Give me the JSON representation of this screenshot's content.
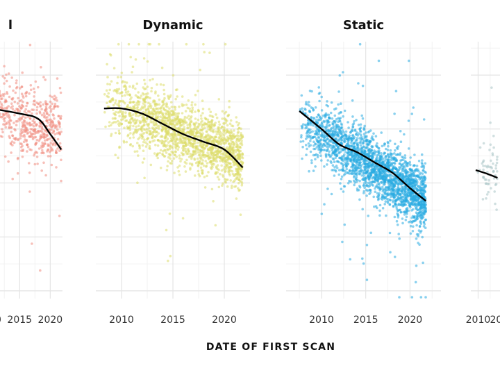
{
  "chart_data": {
    "type": "scatter",
    "xlabel": "DATE OF FIRST SCAN",
    "ylabel": "",
    "grid": true,
    "legend": "none",
    "x_ticks": [
      2010,
      2015,
      2020
    ],
    "panels": [
      {
        "title": "l",
        "color": "#F08C80",
        "xlim": [
          2005,
          2022
        ],
        "ylim": [
          0,
          1
        ],
        "trend": {
          "x": [
            2005,
            2010,
            2015,
            2018,
            2020,
            2021.8
          ],
          "y": [
            0.75,
            0.74,
            0.72,
            0.7,
            0.64,
            0.58
          ]
        },
        "cloud": {
          "x_range": [
            2005,
            2021.8
          ],
          "center_y": [
            0.76,
            0.65
          ],
          "spread": 0.07,
          "count": 700
        }
      },
      {
        "title": "Dynamic",
        "color": "#DDDD6A",
        "xlim": [
          2007.5,
          2022.5
        ],
        "ylim": [
          0,
          1
        ],
        "trend": {
          "x": [
            2008.3,
            2010,
            2012,
            2014,
            2016,
            2018,
            2020,
            2021.8
          ],
          "y": [
            0.74,
            0.74,
            0.72,
            0.68,
            0.64,
            0.61,
            0.58,
            0.51
          ]
        },
        "cloud": {
          "x_range": [
            2008.3,
            2021.8
          ],
          "center_y": [
            0.76,
            0.55
          ],
          "spread": 0.065,
          "count": 1800
        }
      },
      {
        "title": "Static",
        "color": "#29ABE2",
        "xlim": [
          2006,
          2023.5
        ],
        "ylim": [
          0,
          1
        ],
        "trend": {
          "x": [
            2007.5,
            2010,
            2012,
            2014,
            2016,
            2018,
            2020,
            2021.8
          ],
          "y": [
            0.73,
            0.66,
            0.6,
            0.57,
            0.53,
            0.49,
            0.43,
            0.38
          ]
        },
        "cloud": {
          "x_range": [
            2007.5,
            2021.8
          ],
          "center_y": [
            0.7,
            0.38
          ],
          "spread": 0.06,
          "count": 2400
        }
      },
      {
        "title": "",
        "color": "#A9C4C6",
        "xlim": [
          2008.5,
          2030
        ],
        "ylim": [
          0,
          1
        ],
        "trend": {
          "x": [
            2009.5,
            2012,
            2014
          ],
          "y": [
            0.5,
            0.485,
            0.47
          ]
        },
        "cloud": {
          "x_range": [
            2009.5,
            2014
          ],
          "center_y": [
            0.52,
            0.46
          ],
          "spread": 0.06,
          "count": 60
        }
      }
    ]
  }
}
